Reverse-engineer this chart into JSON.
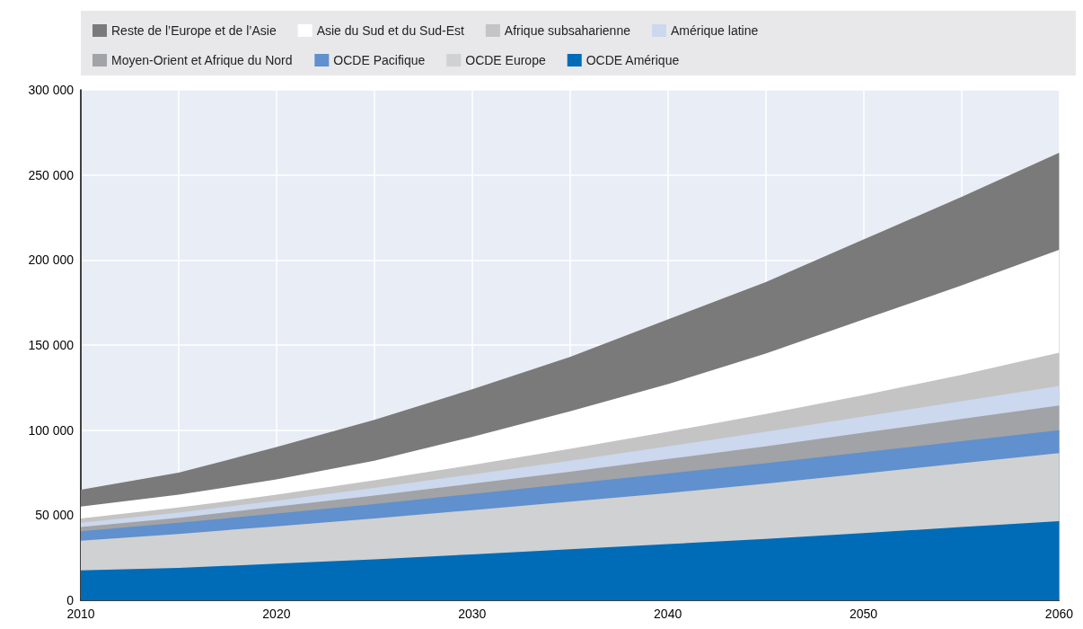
{
  "chart_data": {
    "type": "area",
    "stacked": true,
    "grid": true,
    "legend": "top",
    "x": [
      2010,
      2015,
      2020,
      2025,
      2030,
      2035,
      2040,
      2045,
      2050,
      2055,
      2060
    ],
    "xlim": [
      2010,
      2060
    ],
    "xticks": [
      2010,
      {
        "value": 2015,
        "label": null
      },
      2020,
      {
        "value": 2025,
        "label": null
      },
      2030,
      {
        "value": 2035,
        "label": null
      },
      2040,
      {
        "value": 2045,
        "label": null
      },
      2050,
      {
        "value": 2055,
        "label": null
      },
      2060
    ],
    "ylim": [
      0,
      300000
    ],
    "yticks": [
      {
        "value": 0,
        "label": "0"
      },
      {
        "value": 50000,
        "label": "50 000"
      },
      {
        "value": 100000,
        "label": "100 000"
      },
      {
        "value": 150000,
        "label": "150 000"
      },
      {
        "value": 200000,
        "label": "200 000"
      },
      {
        "value": 250000,
        "label": "250 000"
      },
      {
        "value": 300000,
        "label": "300 000"
      }
    ],
    "series": [
      {
        "name": "OCDE Amérique",
        "color": "#006bb6",
        "values": [
          17500,
          19000,
          21500,
          24000,
          27000,
          30000,
          33000,
          36000,
          39500,
          43000,
          46500
        ]
      },
      {
        "name": "OCDE Europe",
        "color": "#d0d1d3",
        "values": [
          17500,
          20000,
          22000,
          24000,
          26000,
          28000,
          30000,
          32500,
          35000,
          37500,
          40000
        ]
      },
      {
        "name": "OCDE Pacifique",
        "color": "#6090cd",
        "values": [
          5500,
          6500,
          7500,
          8500,
          9500,
          10500,
          11500,
          12000,
          12500,
          13000,
          13500
        ]
      },
      {
        "name": "Moyen-Orient et Afrique du Nord",
        "color": "#a2a3a6",
        "values": [
          2500,
          3000,
          4000,
          5000,
          6000,
          7000,
          8500,
          10000,
          11500,
          13000,
          14500
        ]
      },
      {
        "name": "Amérique latine",
        "color": "#cbd8ee",
        "values": [
          2500,
          3000,
          3500,
          4500,
          5500,
          6500,
          7500,
          8500,
          9500,
          10500,
          11500
        ]
      },
      {
        "name": "Afrique subsaharienne",
        "color": "#c4c4c4",
        "values": [
          2500,
          3000,
          3500,
          4500,
          5500,
          7000,
          8500,
          10500,
          12500,
          15500,
          19500
        ]
      },
      {
        "name": "Asie du Sud et du Sud-Est",
        "color": "#ffffff",
        "values": [
          7000,
          7500,
          9000,
          11500,
          16500,
          22000,
          28000,
          35500,
          44500,
          52500,
          60500
        ]
      },
      {
        "name": "Reste de l’Europe et de l’Asie",
        "color": "#7a7a7a",
        "values": [
          10000,
          13000,
          19000,
          24000,
          28000,
          32000,
          38000,
          42000,
          47000,
          52000,
          57000
        ]
      }
    ]
  }
}
